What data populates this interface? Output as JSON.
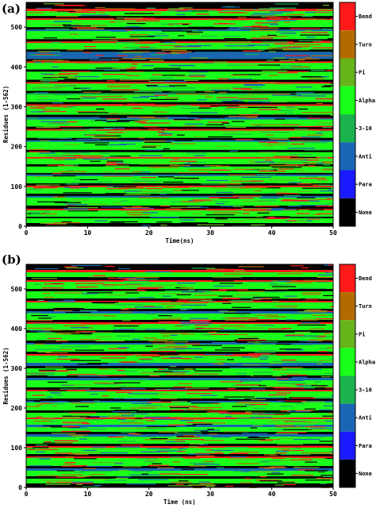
{
  "chart_data": [
    {
      "panel": "(a)",
      "type": "heatmap",
      "xlabel": "Time(ns)",
      "ylabel": "Residues (1-562)",
      "x_ticks": [
        0,
        10,
        20,
        30,
        40,
        50
      ],
      "y_ticks": [
        0,
        100,
        200,
        300,
        400,
        500
      ],
      "xlim": [
        0,
        50
      ],
      "ylim": [
        0,
        562
      ],
      "legend": [
        {
          "label": "Bend",
          "color": "#ff1a1a"
        },
        {
          "label": "Turn",
          "color": "#b36b00"
        },
        {
          "label": "Pi",
          "color": "#66b31a"
        },
        {
          "label": "Alpha",
          "color": "#1aff1a"
        },
        {
          "label": "3-10",
          "color": "#1ab34d"
        },
        {
          "label": "Anti",
          "color": "#1a66b3"
        },
        {
          "label": "Para",
          "color": "#1a1aff"
        },
        {
          "label": "None",
          "color": "#000000"
        }
      ],
      "residue_bands": [
        {
          "from": 0,
          "to": 8,
          "state": "None"
        },
        {
          "from": 8,
          "to": 20,
          "state": "Alpha"
        },
        {
          "from": 20,
          "to": 24,
          "state": "None"
        },
        {
          "from": 24,
          "to": 40,
          "state": "Alpha"
        },
        {
          "from": 40,
          "to": 44,
          "state": "Bend"
        },
        {
          "from": 44,
          "to": 52,
          "state": "None"
        },
        {
          "from": 52,
          "to": 72,
          "state": "Alpha"
        },
        {
          "from": 72,
          "to": 76,
          "state": "Anti"
        },
        {
          "from": 76,
          "to": 82,
          "state": "None"
        },
        {
          "from": 82,
          "to": 98,
          "state": "Alpha"
        },
        {
          "from": 98,
          "to": 102,
          "state": "Bend"
        },
        {
          "from": 102,
          "to": 108,
          "state": "None"
        },
        {
          "from": 108,
          "to": 126,
          "state": "Alpha"
        },
        {
          "from": 126,
          "to": 130,
          "state": "Anti"
        },
        {
          "from": 130,
          "to": 134,
          "state": "None"
        },
        {
          "from": 134,
          "to": 150,
          "state": "Alpha"
        },
        {
          "from": 150,
          "to": 156,
          "state": "None"
        },
        {
          "from": 156,
          "to": 170,
          "state": "Alpha"
        },
        {
          "from": 170,
          "to": 174,
          "state": "Bend"
        },
        {
          "from": 174,
          "to": 186,
          "state": "Alpha"
        },
        {
          "from": 186,
          "to": 192,
          "state": "None"
        },
        {
          "from": 192,
          "to": 212,
          "state": "Alpha"
        },
        {
          "from": 212,
          "to": 216,
          "state": "Anti"
        },
        {
          "from": 216,
          "to": 222,
          "state": "None"
        },
        {
          "from": 222,
          "to": 240,
          "state": "Alpha"
        },
        {
          "from": 240,
          "to": 244,
          "state": "Bend"
        },
        {
          "from": 244,
          "to": 250,
          "state": "None"
        },
        {
          "from": 250,
          "to": 268,
          "state": "Alpha"
        },
        {
          "from": 268,
          "to": 274,
          "state": "Anti"
        },
        {
          "from": 274,
          "to": 280,
          "state": "None"
        },
        {
          "from": 280,
          "to": 302,
          "state": "Alpha"
        },
        {
          "from": 302,
          "to": 306,
          "state": "Bend"
        },
        {
          "from": 306,
          "to": 312,
          "state": "None"
        },
        {
          "from": 312,
          "to": 330,
          "state": "Alpha"
        },
        {
          "from": 330,
          "to": 334,
          "state": "3-10"
        },
        {
          "from": 334,
          "to": 340,
          "state": "None"
        },
        {
          "from": 340,
          "to": 358,
          "state": "Alpha"
        },
        {
          "from": 358,
          "to": 362,
          "state": "Bend"
        },
        {
          "from": 362,
          "to": 368,
          "state": "None"
        },
        {
          "from": 368,
          "to": 388,
          "state": "Alpha"
        },
        {
          "from": 388,
          "to": 394,
          "state": "None"
        },
        {
          "from": 394,
          "to": 410,
          "state": "Alpha"
        },
        {
          "from": 410,
          "to": 414,
          "state": "Bend"
        },
        {
          "from": 414,
          "to": 420,
          "state": "None"
        },
        {
          "from": 420,
          "to": 438,
          "state": "Anti"
        },
        {
          "from": 438,
          "to": 444,
          "state": "None"
        },
        {
          "from": 444,
          "to": 460,
          "state": "Alpha"
        },
        {
          "from": 460,
          "to": 464,
          "state": "Bend"
        },
        {
          "from": 464,
          "to": 470,
          "state": "None"
        },
        {
          "from": 470,
          "to": 490,
          "state": "Alpha"
        },
        {
          "from": 490,
          "to": 494,
          "state": "Anti"
        },
        {
          "from": 494,
          "to": 500,
          "state": "None"
        },
        {
          "from": 500,
          "to": 518,
          "state": "Alpha"
        },
        {
          "from": 518,
          "to": 522,
          "state": "Bend"
        },
        {
          "from": 522,
          "to": 528,
          "state": "None"
        },
        {
          "from": 528,
          "to": 540,
          "state": "Alpha"
        },
        {
          "from": 540,
          "to": 546,
          "state": "Bend"
        },
        {
          "from": 546,
          "to": 562,
          "state": "None"
        }
      ]
    },
    {
      "panel": "(b)",
      "type": "heatmap",
      "xlabel": "Time (ns)",
      "ylabel": "Residues (1-562)",
      "x_ticks": [
        0,
        10,
        20,
        30,
        40,
        50
      ],
      "y_ticks": [
        0,
        100,
        200,
        300,
        400,
        500
      ],
      "xlim": [
        0,
        50
      ],
      "ylim": [
        0,
        562
      ],
      "legend": [
        {
          "label": "Bend",
          "color": "#ff1a1a"
        },
        {
          "label": "Turn",
          "color": "#b36b00"
        },
        {
          "label": "Pi",
          "color": "#66b31a"
        },
        {
          "label": "Alpha",
          "color": "#1aff1a"
        },
        {
          "label": "3-10",
          "color": "#1ab34d"
        },
        {
          "label": "Anti",
          "color": "#1a66b3"
        },
        {
          "label": "Para",
          "color": "#1a1aff"
        },
        {
          "label": "None",
          "color": "#000000"
        }
      ],
      "residue_bands": [
        {
          "from": 0,
          "to": 10,
          "state": "None"
        },
        {
          "from": 10,
          "to": 22,
          "state": "Alpha"
        },
        {
          "from": 22,
          "to": 28,
          "state": "None"
        },
        {
          "from": 28,
          "to": 42,
          "state": "Alpha"
        },
        {
          "from": 42,
          "to": 48,
          "state": "Anti"
        },
        {
          "from": 48,
          "to": 54,
          "state": "None"
        },
        {
          "from": 54,
          "to": 74,
          "state": "Alpha"
        },
        {
          "from": 74,
          "to": 78,
          "state": "Bend"
        },
        {
          "from": 78,
          "to": 84,
          "state": "None"
        },
        {
          "from": 84,
          "to": 100,
          "state": "Alpha"
        },
        {
          "from": 100,
          "to": 104,
          "state": "Bend"
        },
        {
          "from": 104,
          "to": 110,
          "state": "None"
        },
        {
          "from": 110,
          "to": 128,
          "state": "Alpha"
        },
        {
          "from": 128,
          "to": 134,
          "state": "Anti"
        },
        {
          "from": 134,
          "to": 140,
          "state": "None"
        },
        {
          "from": 140,
          "to": 152,
          "state": "Alpha"
        },
        {
          "from": 152,
          "to": 158,
          "state": "Anti"
        },
        {
          "from": 158,
          "to": 172,
          "state": "Alpha"
        },
        {
          "from": 172,
          "to": 176,
          "state": "Bend"
        },
        {
          "from": 176,
          "to": 188,
          "state": "Alpha"
        },
        {
          "from": 188,
          "to": 194,
          "state": "None"
        },
        {
          "from": 194,
          "to": 214,
          "state": "Alpha"
        },
        {
          "from": 214,
          "to": 218,
          "state": "Anti"
        },
        {
          "from": 218,
          "to": 224,
          "state": "None"
        },
        {
          "from": 224,
          "to": 242,
          "state": "Alpha"
        },
        {
          "from": 242,
          "to": 246,
          "state": "Bend"
        },
        {
          "from": 246,
          "to": 252,
          "state": "None"
        },
        {
          "from": 252,
          "to": 270,
          "state": "Alpha"
        },
        {
          "from": 270,
          "to": 276,
          "state": "Anti"
        },
        {
          "from": 276,
          "to": 282,
          "state": "None"
        },
        {
          "from": 282,
          "to": 300,
          "state": "Alpha"
        },
        {
          "from": 300,
          "to": 306,
          "state": "None"
        },
        {
          "from": 306,
          "to": 314,
          "state": "Anti"
        },
        {
          "from": 314,
          "to": 332,
          "state": "Alpha"
        },
        {
          "from": 332,
          "to": 336,
          "state": "Bend"
        },
        {
          "from": 336,
          "to": 342,
          "state": "None"
        },
        {
          "from": 342,
          "to": 360,
          "state": "Alpha"
        },
        {
          "from": 360,
          "to": 364,
          "state": "Anti"
        },
        {
          "from": 364,
          "to": 370,
          "state": "None"
        },
        {
          "from": 370,
          "to": 390,
          "state": "Alpha"
        },
        {
          "from": 390,
          "to": 396,
          "state": "None"
        },
        {
          "from": 396,
          "to": 412,
          "state": "Alpha"
        },
        {
          "from": 412,
          "to": 416,
          "state": "Bend"
        },
        {
          "from": 416,
          "to": 422,
          "state": "None"
        },
        {
          "from": 422,
          "to": 438,
          "state": "Alpha"
        },
        {
          "from": 438,
          "to": 444,
          "state": "Anti"
        },
        {
          "from": 444,
          "to": 450,
          "state": "None"
        },
        {
          "from": 450,
          "to": 466,
          "state": "Alpha"
        },
        {
          "from": 466,
          "to": 470,
          "state": "Bend"
        },
        {
          "from": 470,
          "to": 476,
          "state": "None"
        },
        {
          "from": 476,
          "to": 494,
          "state": "Alpha"
        },
        {
          "from": 494,
          "to": 500,
          "state": "None"
        },
        {
          "from": 500,
          "to": 518,
          "state": "Alpha"
        },
        {
          "from": 518,
          "to": 522,
          "state": "Bend"
        },
        {
          "from": 522,
          "to": 530,
          "state": "None"
        },
        {
          "from": 530,
          "to": 542,
          "state": "Alpha"
        },
        {
          "from": 542,
          "to": 548,
          "state": "Bend"
        },
        {
          "from": 548,
          "to": 562,
          "state": "None"
        }
      ]
    }
  ]
}
